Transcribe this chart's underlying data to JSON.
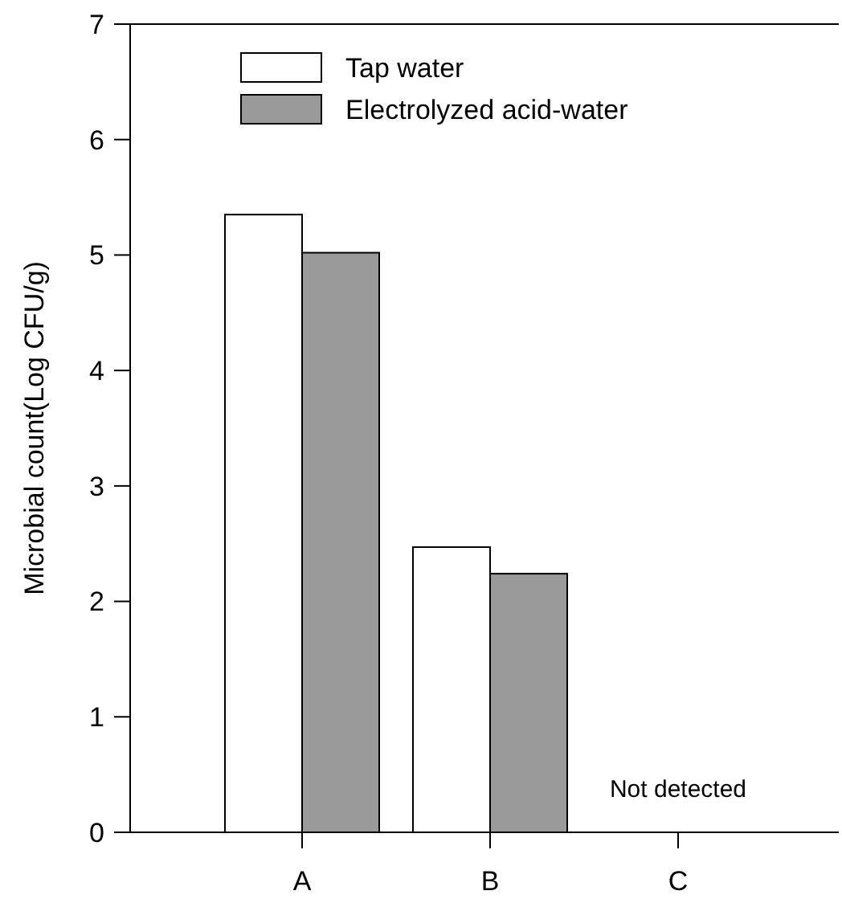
{
  "chart_data": {
    "type": "bar",
    "ylabel": "Microbial count(Log CFU/g)",
    "categories": [
      "A",
      "B",
      "C"
    ],
    "series": [
      {
        "name": "Tap water",
        "color": "#ffffff",
        "values": [
          5.35,
          2.47,
          null
        ]
      },
      {
        "name": "Electrolyzed acid-water",
        "color": "#9a9a9a",
        "values": [
          5.02,
          2.24,
          null
        ]
      }
    ],
    "ylim": [
      0,
      7
    ],
    "yticks": [
      0,
      1,
      2,
      3,
      4,
      5,
      6,
      7
    ],
    "grid": false,
    "legend": "top left",
    "annotations": [
      "Not detected"
    ]
  }
}
